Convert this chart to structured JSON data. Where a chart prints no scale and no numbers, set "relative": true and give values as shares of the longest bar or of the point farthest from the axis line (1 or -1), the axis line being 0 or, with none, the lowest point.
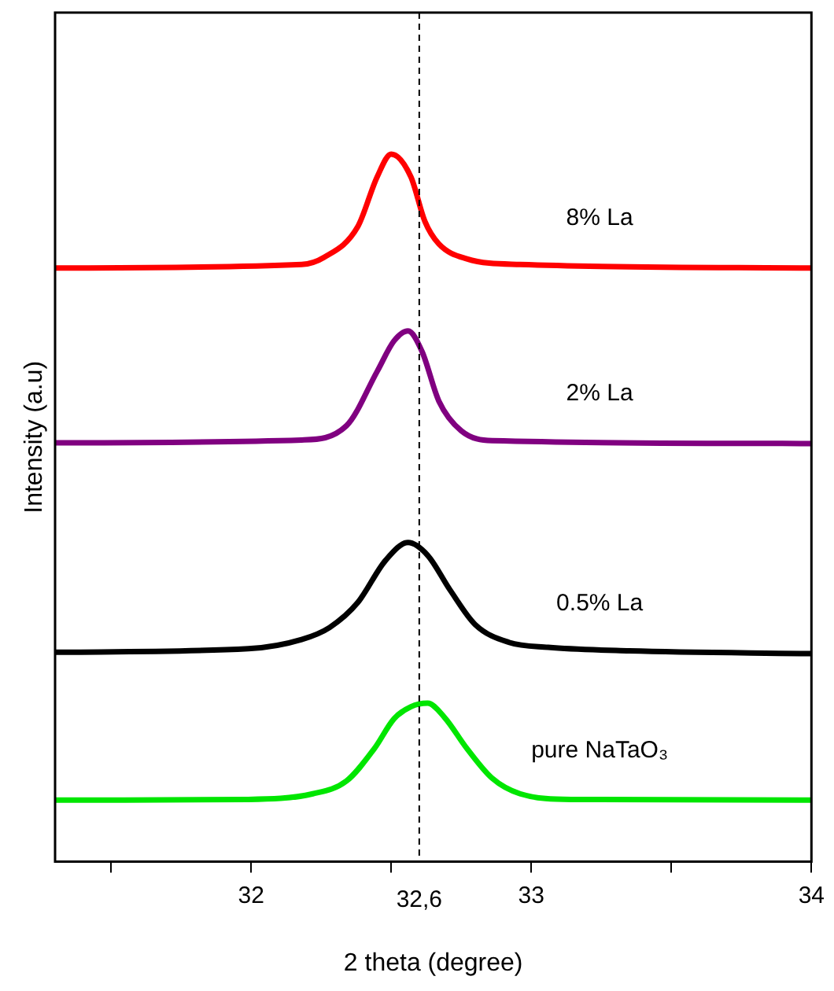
{
  "chart_data": {
    "type": "line",
    "relative": true,
    "xlabel": "2 theta (degree)",
    "ylabel": "Intensity (a.u)",
    "xlim": [
      31.3,
      34
    ],
    "xticks": [
      {
        "value": 31.5,
        "label": null
      },
      32,
      {
        "value": 32.5,
        "label": null
      },
      33,
      {
        "value": 33.5,
        "label": null
      },
      34
    ],
    "grid": false,
    "legend": false,
    "marker": "none",
    "line_style": "solid",
    "ref_lines": [
      {
        "axis": "x",
        "value": 32.6,
        "label": "32,6",
        "line_style": "dashed",
        "color": "#000000"
      }
    ],
    "series": [
      {
        "name": "8% La",
        "color": "#ff0000",
        "x": [
          31.3,
          32.18,
          32.26,
          32.38,
          32.45,
          32.5,
          32.57,
          32.62,
          32.67,
          32.77,
          32.96,
          34
        ],
        "values": [
          0.839,
          0.844,
          0.854,
          0.897,
          0.968,
          1.0,
          0.968,
          0.905,
          0.873,
          0.852,
          0.844,
          0.839
        ]
      },
      {
        "name": "2% La",
        "color": "#800080",
        "x": [
          31.3,
          32.18,
          32.34,
          32.45,
          32.51,
          32.56,
          32.61,
          32.67,
          32.75,
          32.86,
          34
        ],
        "values": [
          0.592,
          0.596,
          0.616,
          0.693,
          0.736,
          0.75,
          0.721,
          0.651,
          0.609,
          0.595,
          0.591
        ]
      },
      {
        "name": "0.5% La",
        "color": "#000000",
        "x": [
          31.3,
          31.99,
          32.18,
          32.28,
          32.38,
          32.48,
          32.56,
          32.63,
          32.71,
          32.8,
          32.92,
          33.06,
          33.35,
          34
        ],
        "values": [
          0.296,
          0.301,
          0.314,
          0.331,
          0.366,
          0.426,
          0.451,
          0.433,
          0.384,
          0.335,
          0.31,
          0.303,
          0.298,
          0.294
        ]
      },
      {
        "name": "pure NaTaO₃",
        "color": "#00e600",
        "x": [
          31.3,
          31.99,
          32.22,
          32.34,
          32.44,
          32.51,
          32.57,
          32.63,
          32.69,
          32.77,
          32.86,
          32.96,
          33.15,
          34
        ],
        "values": [
          0.087,
          0.088,
          0.096,
          0.114,
          0.16,
          0.202,
          0.219,
          0.224,
          0.204,
          0.16,
          0.118,
          0.096,
          0.088,
          0.087
        ]
      }
    ]
  }
}
